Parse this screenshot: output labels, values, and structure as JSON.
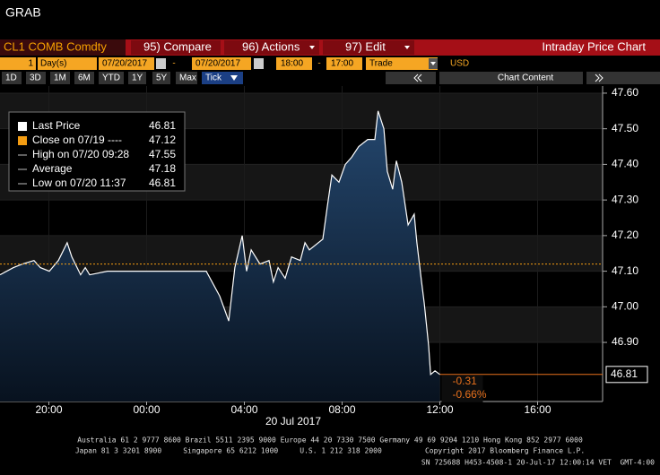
{
  "header": {
    "title": "GRAB"
  },
  "toolbar": {
    "ticker": "CL1 COMB Comdty",
    "menus": [
      "95) Compare",
      "96) Actions",
      "97) Edit"
    ],
    "view": "Intraday Price Chart"
  },
  "settings": {
    "period": "1",
    "unit": "Day(s)",
    "start_date": "07/20/2017",
    "date_sep": "-",
    "end_date": "07/20/2017",
    "start_time": "18:00",
    "time_sep": "-",
    "end_time": "17:00",
    "field": "Trade",
    "currency": "USD"
  },
  "ranges": [
    "1D",
    "3D",
    "1M",
    "6M",
    "YTD",
    "1Y",
    "5Y",
    "Max",
    "Tick"
  ],
  "chart_content": "Chart Content",
  "chart_data": {
    "type": "line",
    "fill_area": true,
    "x": [
      0,
      0.55,
      0.92,
      1.39,
      1.65,
      2.02,
      2.39,
      2.75,
      2.94,
      3.3,
      3.49,
      3.67,
      4.4,
      5.14,
      5.87,
      6.61,
      7.34,
      8.44,
      8.99,
      9.36,
      9.61,
      9.91,
      10.09,
      10.28,
      10.64,
      11.01,
      11.19,
      11.38,
      11.67,
      11.93,
      12.29,
      12.48,
      12.66,
      13.21,
      13.39,
      13.58,
      13.87,
      14.13,
      14.39,
      14.68,
      15.05,
      15.34,
      15.47,
      15.71,
      15.85,
      16.07,
      16.22,
      16.44,
      16.7,
      16.95,
      17.06,
      17.25,
      17.36,
      17.54,
      17.62,
      17.8,
      18
    ],
    "series": [
      {
        "name": "Last Price",
        "color": "#ffffff",
        "values": [
          47.09,
          47.11,
          47.12,
          47.13,
          47.11,
          47.1,
          47.13,
          47.18,
          47.14,
          47.09,
          47.11,
          47.09,
          47.1,
          47.1,
          47.1,
          47.1,
          47.1,
          47.1,
          47.03,
          46.96,
          47.11,
          47.2,
          47.1,
          47.16,
          47.12,
          47.13,
          47.07,
          47.11,
          47.08,
          47.14,
          47.13,
          47.18,
          47.16,
          47.19,
          47.28,
          47.37,
          47.35,
          47.4,
          47.42,
          47.45,
          47.47,
          47.47,
          47.55,
          47.5,
          47.38,
          47.33,
          47.41,
          47.35,
          47.23,
          47.26,
          47.18,
          47.07,
          47.01,
          46.89,
          46.81,
          46.82,
          46.81
        ]
      }
    ],
    "last_price": 46.81,
    "stats": [
      {
        "label": "Close on 07/19 ----",
        "value": 47.12,
        "color": "#f39c12"
      },
      {
        "label": "High on 07/20 09:28",
        "value": 47.55
      },
      {
        "label": "Average",
        "value": 47.18
      },
      {
        "label": "Low on 07/20 11:37",
        "value": 46.81
      }
    ],
    "change": -0.31,
    "change_pct": {
      "value": -0.66,
      "label": "-0.66%"
    },
    "xlim": [
      0,
      24.66
    ],
    "xticks": [
      {
        "value": 2,
        "label": "20:00"
      },
      {
        "value": 6,
        "label": "00:00"
      },
      {
        "value": 10,
        "label": "04:00"
      },
      {
        "value": 14,
        "label": "08:00"
      },
      {
        "value": 18,
        "label": "12:00"
      },
      {
        "value": 22,
        "label": "16:00"
      }
    ],
    "x_sublabel": "20 Jul 2017",
    "ylim": [
      46.734,
      47.62
    ],
    "yticks": [
      {
        "value": 46.9,
        "label": "46.90"
      },
      {
        "value": 47.0,
        "label": "47.00"
      },
      {
        "value": 47.1,
        "label": "47.10"
      },
      {
        "value": 47.2,
        "label": "47.20"
      },
      {
        "value": 47.3,
        "label": "47.30"
      },
      {
        "value": 47.4,
        "label": "47.40"
      },
      {
        "value": 47.5,
        "label": "47.50"
      },
      {
        "value": 47.6,
        "label": "47.60"
      }
    ],
    "y_axis_side": "right",
    "grid": true
  },
  "footer": [
    "Australia 61 2 9777 8600 Brazil 5511 2395 9000 Europe 44 20 7330 7500 Germany 49 69 9204 1210 Hong Kong 852 2977 6000",
    "Japan 81 3 3201 8900     Singapore 65 6212 1000     U.S. 1 212 318 2000          Copyright 2017 Bloomberg Finance L.P.",
    "SN 725688 H453-4508-1 20-Jul-17 12:00:14 VET  GMT-4:00"
  ]
}
